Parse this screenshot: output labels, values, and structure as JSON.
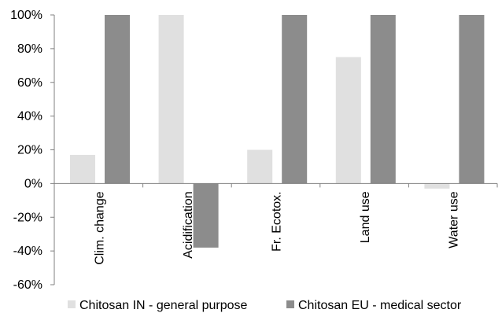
{
  "chart_data": {
    "type": "bar",
    "categories": [
      "Clim. change",
      "Acidification",
      "Fr. Ecotox.",
      "Land use",
      "Water use"
    ],
    "series": [
      {
        "name": "Chitosan IN - general purpose",
        "values": [
          17,
          100,
          20,
          75,
          -3
        ],
        "color": "#e0e0e0"
      },
      {
        "name": "Chitosan EU - medical sector",
        "values": [
          100,
          -38,
          100,
          100,
          100
        ],
        "color": "#8c8c8c"
      }
    ],
    "ylim": [
      -60,
      100
    ],
    "yticks": [
      -60,
      -40,
      -20,
      0,
      20,
      40,
      60,
      80,
      100
    ],
    "ytick_labels": [
      "-60%",
      "-40%",
      "-20%",
      "0%",
      "20%",
      "40%",
      "60%",
      "80%",
      "100%"
    ],
    "grid": false,
    "legend_position": "bottom"
  }
}
